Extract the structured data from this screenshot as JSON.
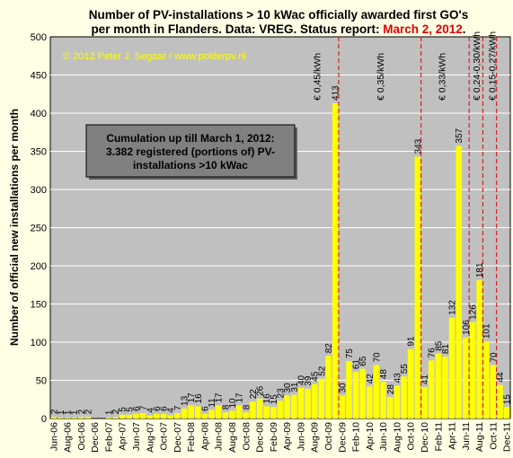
{
  "chart_data": {
    "type": "bar",
    "title_lines": [
      "Number of PV-installations  > 10 kWac officially awarded first GO's",
      "per month  in Flanders. Data: VREG. Status report: "
    ],
    "title_highlight": "March 2, 2012",
    "title_end": ".",
    "ylabel": "Number of official new installations per month",
    "ylim": [
      0,
      500
    ],
    "yticks": [
      0,
      50,
      100,
      150,
      200,
      250,
      300,
      350,
      400,
      450,
      500
    ],
    "grid": true,
    "x_tick_labels": [
      "Jun-06",
      "Aug-06",
      "Oct-06",
      "Dec-06",
      "Feb-07",
      "Apr-07",
      "Jun-07",
      "Aug-07",
      "Oct-07",
      "Dec-07",
      "Feb-08",
      "Apr-08",
      "Jun-08",
      "Aug-08",
      "Oct-08",
      "Dec-08",
      "Feb-09",
      "Apr-09",
      "Jun-09",
      "Aug-09",
      "Oct-09",
      "Dec-09",
      "Feb-10",
      "Apr-10",
      "Jun-10",
      "Aug-10",
      "Oct-10",
      "Dec-10",
      "Feb-11",
      "Apr-11",
      "Jun-11",
      "Aug-11",
      "Oct-11",
      "Dec-11"
    ],
    "values": [
      2,
      1,
      1,
      1,
      2,
      2,
      0,
      0,
      1,
      2,
      5,
      5,
      6,
      7,
      4,
      6,
      6,
      4,
      7,
      13,
      17,
      16,
      6,
      11,
      17,
      8,
      10,
      17,
      8,
      22,
      26,
      16,
      15,
      23,
      30,
      31,
      40,
      39,
      45,
      52,
      82,
      413,
      30,
      75,
      61,
      65,
      42,
      70,
      48,
      28,
      43,
      55,
      91,
      343,
      41,
      76,
      85,
      81,
      132,
      357,
      106,
      126,
      181,
      101,
      70,
      44,
      15
    ],
    "labels": [
      "2",
      "1",
      "1",
      "1",
      "2",
      "2",
      "",
      "",
      "1",
      "2",
      "5",
      "5",
      "6",
      "7",
      "4",
      "6",
      "6",
      "4",
      "7",
      "13",
      "17",
      "16",
      "6",
      "11",
      "17",
      "8",
      "10",
      "17",
      "8",
      "22",
      "26",
      "16",
      "15",
      "23",
      "30",
      "31",
      "40",
      "39",
      "45",
      "52",
      "82",
      "413",
      "30",
      "75",
      "61",
      "65",
      "42",
      "70",
      "48",
      "28",
      "43",
      "55",
      "91",
      "343",
      "41",
      "76",
      "85",
      "81",
      "132",
      "357",
      "106",
      "126",
      "181",
      "101",
      "70",
      "44",
      "15"
    ],
    "bar_color": "#ffff00",
    "tariff_separators_after_index": [
      41,
      53,
      60,
      62,
      64
    ],
    "tariff_labels": [
      {
        "text": "€ 0,45/kWh",
        "at_index": 38.3
      },
      {
        "text": "€ 0,35/kWh",
        "at_index": 47.5
      },
      {
        "text": "€ 0,33/kWh",
        "at_index": 56.5
      },
      {
        "text": "€ 0,24-0,30/kWh",
        "at_index": 61.5
      },
      {
        "text": "€ 0,15-0,27/kWh",
        "at_index": 63.8
      }
    ],
    "copyright": "© 2012 Peter J. Segaar / www.polderpv.nl",
    "cumulation_box": [
      "Cumulation up till March 1, 2012:",
      "3.382 registered (portions of) PV-",
      "installations >10 kWac"
    ],
    "colors": {
      "background": "#ffffe6",
      "plot_background": "#c0c0c0",
      "separator": "#e00000",
      "title_highlight": "#e00000",
      "box_fill": "#808080"
    }
  }
}
